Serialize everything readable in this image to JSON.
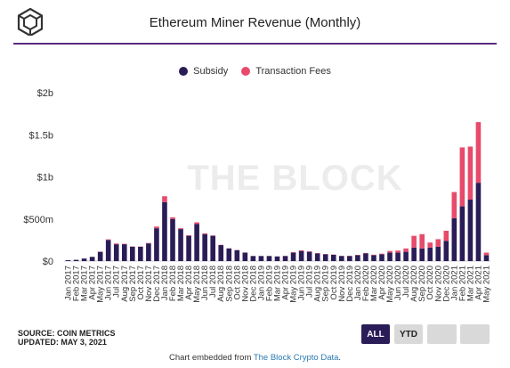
{
  "header": {
    "title": "Ethereum Miner Revenue (Monthly)"
  },
  "legend": [
    {
      "label": "Subsidy",
      "color": "#2a1d57"
    },
    {
      "label": "Transaction Fees",
      "color": "#e84a6b"
    }
  ],
  "watermark": "THE BLOCK",
  "source": {
    "line1": "SOURCE: COIN METRICS",
    "line2": "UPDATED: MAY 3, 2021"
  },
  "buttons": {
    "all": "ALL",
    "ytd": "YTD"
  },
  "footer": {
    "prefix": "Chart embedded from ",
    "link": "The Block Crypto Data",
    "suffix": "."
  },
  "chart_data": {
    "type": "bar",
    "stacked": true,
    "title": "Ethereum Miner Revenue (Monthly)",
    "xlabel": "",
    "ylabel": "",
    "ylim": [
      0,
      2000000000
    ],
    "yticks": [
      0,
      500000000,
      1000000000,
      1500000000,
      2000000000
    ],
    "ytick_labels": [
      "$0",
      "$500m",
      "$1b",
      "$1.5b",
      "$2b"
    ],
    "grid": false,
    "legend_position": "top",
    "categories": [
      "Jan 2017",
      "Feb 2017",
      "Mar 2017",
      "Apr 2017",
      "May 2017",
      "Jun 2017",
      "Jul 2017",
      "Aug 2017",
      "Sep 2017",
      "Oct 2017",
      "Nov 2017",
      "Dec 2017",
      "Jan 2018",
      "Feb 2018",
      "Mar 2018",
      "Apr 2018",
      "May 2018",
      "Jun 2018",
      "Jul 2018",
      "Aug 2018",
      "Sep 2018",
      "Oct 2018",
      "Nov 2018",
      "Dec 2018",
      "Jan 2019",
      "Feb 2019",
      "Mar 2019",
      "Apr 2019",
      "May 2019",
      "Jun 2019",
      "Jul 2019",
      "Aug 2019",
      "Sep 2019",
      "Oct 2019",
      "Nov 2019",
      "Dec 2019",
      "Jan 2020",
      "Feb 2020",
      "Mar 2020",
      "Apr 2020",
      "May 2020",
      "Jun 2020",
      "Jul 2020",
      "Aug 2020",
      "Sep 2020",
      "Oct 2020",
      "Nov 2020",
      "Dec 2020",
      "Jan 2021",
      "Feb 2021",
      "Mar 2021",
      "Apr 2021",
      "May 2021"
    ],
    "series": [
      {
        "name": "Subsidy",
        "color": "#2a1d57",
        "values": [
          10000000,
          15000000,
          30000000,
          50000000,
          110000000,
          250000000,
          200000000,
          200000000,
          170000000,
          170000000,
          210000000,
          390000000,
          700000000,
          500000000,
          380000000,
          300000000,
          440000000,
          320000000,
          300000000,
          190000000,
          150000000,
          130000000,
          100000000,
          60000000,
          60000000,
          60000000,
          55000000,
          60000000,
          100000000,
          120000000,
          110000000,
          90000000,
          80000000,
          75000000,
          60000000,
          60000000,
          70000000,
          90000000,
          70000000,
          80000000,
          100000000,
          100000000,
          110000000,
          160000000,
          150000000,
          160000000,
          170000000,
          240000000,
          510000000,
          650000000,
          730000000,
          930000000,
          70000000
        ]
      },
      {
        "name": "Transaction Fees",
        "color": "#e84a6b",
        "values": [
          0,
          0,
          0,
          0,
          2000000,
          8000000,
          8000000,
          5000000,
          4000000,
          3000000,
          5000000,
          20000000,
          70000000,
          20000000,
          10000000,
          8000000,
          20000000,
          10000000,
          5000000,
          3000000,
          3000000,
          2000000,
          2000000,
          1000000,
          1000000,
          1000000,
          1000000,
          2000000,
          5000000,
          8000000,
          6000000,
          4000000,
          4000000,
          3000000,
          3000000,
          3000000,
          4000000,
          6000000,
          6000000,
          8000000,
          20000000,
          25000000,
          40000000,
          140000000,
          170000000,
          60000000,
          90000000,
          120000000,
          310000000,
          700000000,
          630000000,
          720000000,
          30000000
        ]
      }
    ],
    "x_tick_labels": [
      "Jan 2017",
      "Feb 2017",
      "Mar 2017",
      "Apr 2017",
      "May 2017",
      "Jun 2017",
      "Jul 2017",
      "Aug 2017",
      "Sep 2017",
      "Oct 2017",
      "Nov 2017",
      "Dec 2017",
      "Jan 2018",
      "Feb 2018",
      "Mar 2018",
      "Apr 2018",
      "May 2018",
      "Jun 2018",
      "Jul 2018",
      "Aug 2018",
      "Sep 2018",
      "Oct 2018",
      "Nov 2018",
      "Dec 2018",
      "Jan 2019",
      "Feb 2019",
      "Mar 2019",
      "Apr 2019",
      "May 2019",
      "Jun 2019",
      "Jul 2019",
      "Aug 2019",
      "Sep 2019",
      "Oct 2019",
      "Nov 2019",
      "Dec 2019",
      "Jan 2020",
      "Feb 2020",
      "Mar 2020",
      "Apr 2020",
      "May 2020",
      "Jun 2020",
      "Jul 2020",
      "Aug 2020",
      "Sep 2020",
      "Oct 2020",
      "Nov 2020",
      "Dec 2020",
      "Jan 2021",
      "Feb 2021",
      "Mar 2021",
      "Apr 2021",
      "May 2021"
    ]
  }
}
